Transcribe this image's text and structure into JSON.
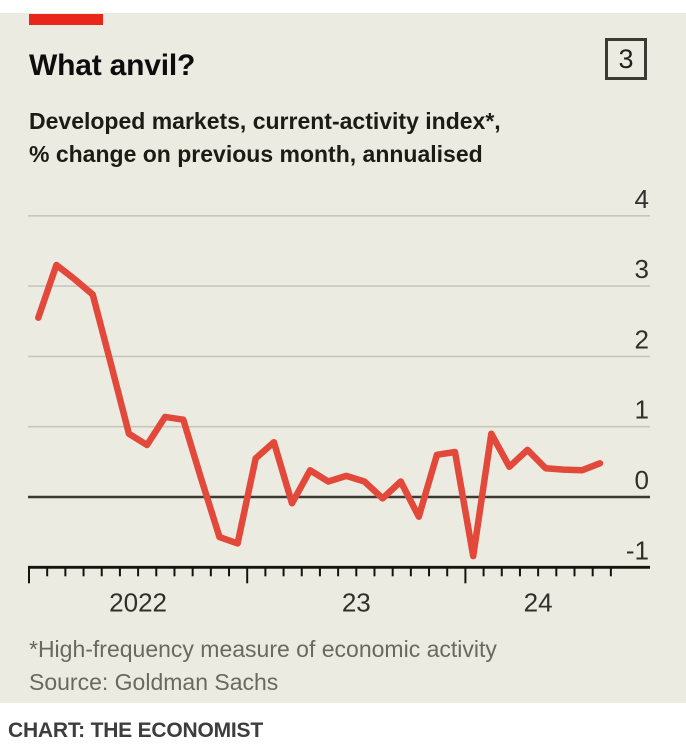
{
  "card": {
    "title": "What anvil?",
    "index_number": "3",
    "subtitle_line1": "Developed markets, current-activity index*,",
    "subtitle_line2": "% change on previous month, annualised",
    "footnote": "*High-frequency measure of economic activity",
    "source": "Source: Goldman Sachs"
  },
  "credit": "CHART: THE ECONOMIST",
  "colors": {
    "tab_red": "#E8261A",
    "line_red": "#E2493B",
    "card_bg": "#ECEBE1",
    "gridline": "#C9C7BB",
    "zero_line": "#3A3A33",
    "axis_ink": "#14140F",
    "tick_label": "#30302B",
    "title_ink": "#0D0D0D",
    "muted_text": "#6A695F"
  },
  "chart_data": {
    "type": "line",
    "title": "What anvil?",
    "subtitle": "Developed markets, current-activity index*, % change on previous month, annualised",
    "source": "Goldman Sachs",
    "grid": "horizontal",
    "legend": "none",
    "ylim": [
      -1,
      4
    ],
    "y_ticks": [
      4,
      3,
      2,
      1,
      0,
      -1
    ],
    "y_axis_side": "right",
    "x_tick_labels": [
      "2022",
      "23",
      "24"
    ],
    "x": [
      "Jan 2022",
      "Feb 2022",
      "Mar 2022",
      "Apr 2022",
      "May 2022",
      "Jun 2022",
      "Jul 2022",
      "Aug 2022",
      "Sep 2022",
      "Oct 2022",
      "Nov 2022",
      "Dec 2022",
      "Jan 2023",
      "Feb 2023",
      "Mar 2023",
      "Apr 2023",
      "May 2023",
      "Jun 2023",
      "Jul 2023",
      "Aug 2023",
      "Sep 2023",
      "Oct 2023",
      "Nov 2023",
      "Dec 2023",
      "Jan 2024",
      "Feb 2024",
      "Mar 2024",
      "Apr 2024",
      "May 2024",
      "Jun 2024",
      "Jul 2024",
      "Aug 2024"
    ],
    "series": [
      {
        "name": "Developed markets current-activity index, % change on previous month, annualised",
        "values": [
          2.55,
          3.3,
          3.1,
          2.88,
          1.9,
          0.9,
          0.74,
          1.14,
          1.1,
          0.25,
          -0.57,
          -0.66,
          0.55,
          0.78,
          -0.09,
          0.38,
          0.22,
          0.3,
          0.22,
          -0.02,
          0.22,
          -0.28,
          0.6,
          0.64,
          -0.84,
          0.9,
          0.43,
          0.67,
          0.41,
          0.39,
          0.38,
          0.48
        ]
      }
    ],
    "line_color": "#E2493B"
  }
}
